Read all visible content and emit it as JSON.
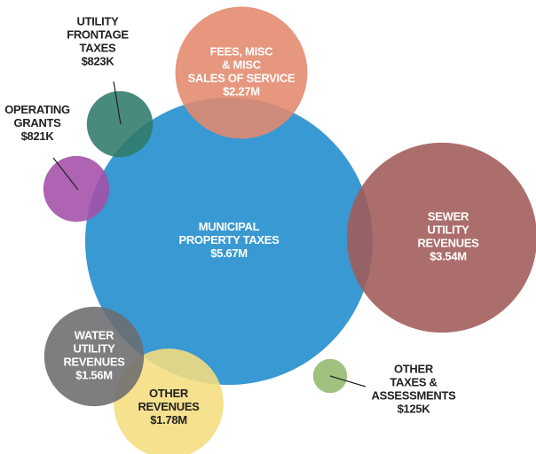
{
  "chart_data": {
    "type": "bubble",
    "categories": [
      [
        "MUNICIPAL",
        "PROPERTY TAXES"
      ],
      [
        "SEWER",
        "UTILITY",
        "REVENUES"
      ],
      [
        "FEES, MISC",
        "& MISC",
        "SALES OF SERVICE"
      ],
      [
        "OTHER",
        "REVENUES"
      ],
      [
        "WATER",
        "UTILITY",
        "REVENUES"
      ],
      [
        "UTILITY",
        "FRONTAGE",
        "TAXES"
      ],
      [
        "OPERATING",
        "GRANTS"
      ],
      [
        "OTHER",
        "TAXES &",
        "ASSESSMENTS"
      ]
    ],
    "values": [
      5670000,
      3540000,
      2270000,
      1780000,
      1560000,
      823000,
      821000,
      125000
    ],
    "value_labels": [
      "$5.67M",
      "$3.54M",
      "$2.27M",
      "$1.78M",
      "$1.56M",
      "$823K",
      "$821K",
      "$125K"
    ],
    "colors": [
      "#1e8bcc",
      "#a05a58",
      "#e3896c",
      "#f5dd7e",
      "#6c6c6e",
      "#2f7a69",
      "#a44fa9",
      "#93b86e"
    ]
  }
}
